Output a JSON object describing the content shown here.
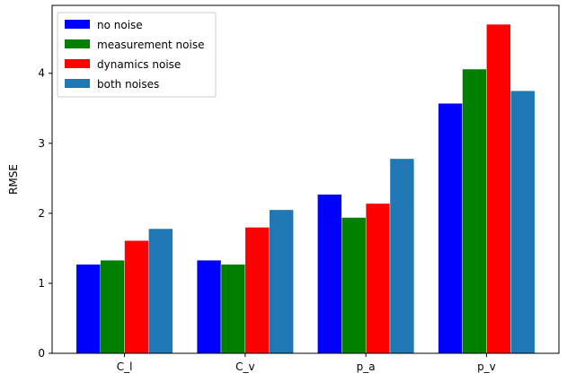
{
  "chart_data": {
    "type": "bar",
    "title": "",
    "xlabel": "",
    "ylabel": "RMSE",
    "ylim": [
      0,
      4.97
    ],
    "yticks": [
      0,
      1,
      2,
      3,
      4
    ],
    "categories": [
      "C_l",
      "C_v",
      "p_a",
      "p_v"
    ],
    "series": [
      {
        "name": "no noise",
        "color": "#0000ff",
        "values": [
          1.27,
          1.33,
          2.27,
          3.57
        ]
      },
      {
        "name": "measurement noise",
        "color": "#008000",
        "values": [
          1.33,
          1.27,
          1.94,
          4.06
        ]
      },
      {
        "name": "dynamics noise",
        "color": "#ff0000",
        "values": [
          1.61,
          1.8,
          2.14,
          4.7
        ]
      },
      {
        "name": "both noises",
        "color": "#1f77b4",
        "values": [
          1.78,
          2.05,
          2.78,
          3.75
        ]
      }
    ],
    "legend": "top-left",
    "grid": false
  }
}
